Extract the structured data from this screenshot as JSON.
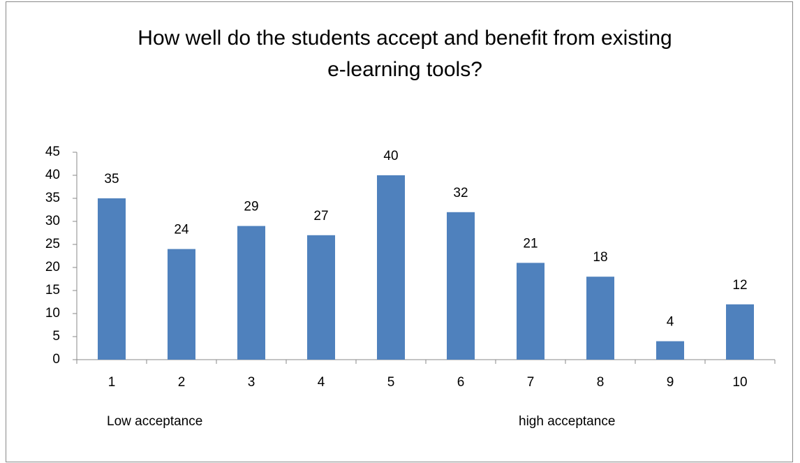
{
  "chart_data": {
    "type": "bar",
    "title": "How well do the students accept and benefit from existing e-learning tools?",
    "categories": [
      "1",
      "2",
      "3",
      "4",
      "5",
      "6",
      "7",
      "8",
      "9",
      "10"
    ],
    "values": [
      35,
      24,
      29,
      27,
      40,
      32,
      21,
      18,
      4,
      12
    ],
    "color": "#4f81bd",
    "ylim": [
      0,
      45
    ],
    "yticks": [
      0,
      5,
      10,
      15,
      20,
      25,
      30,
      35,
      40,
      45
    ],
    "grid": false,
    "annotations": [
      "Low acceptance",
      "high acceptance"
    ]
  }
}
